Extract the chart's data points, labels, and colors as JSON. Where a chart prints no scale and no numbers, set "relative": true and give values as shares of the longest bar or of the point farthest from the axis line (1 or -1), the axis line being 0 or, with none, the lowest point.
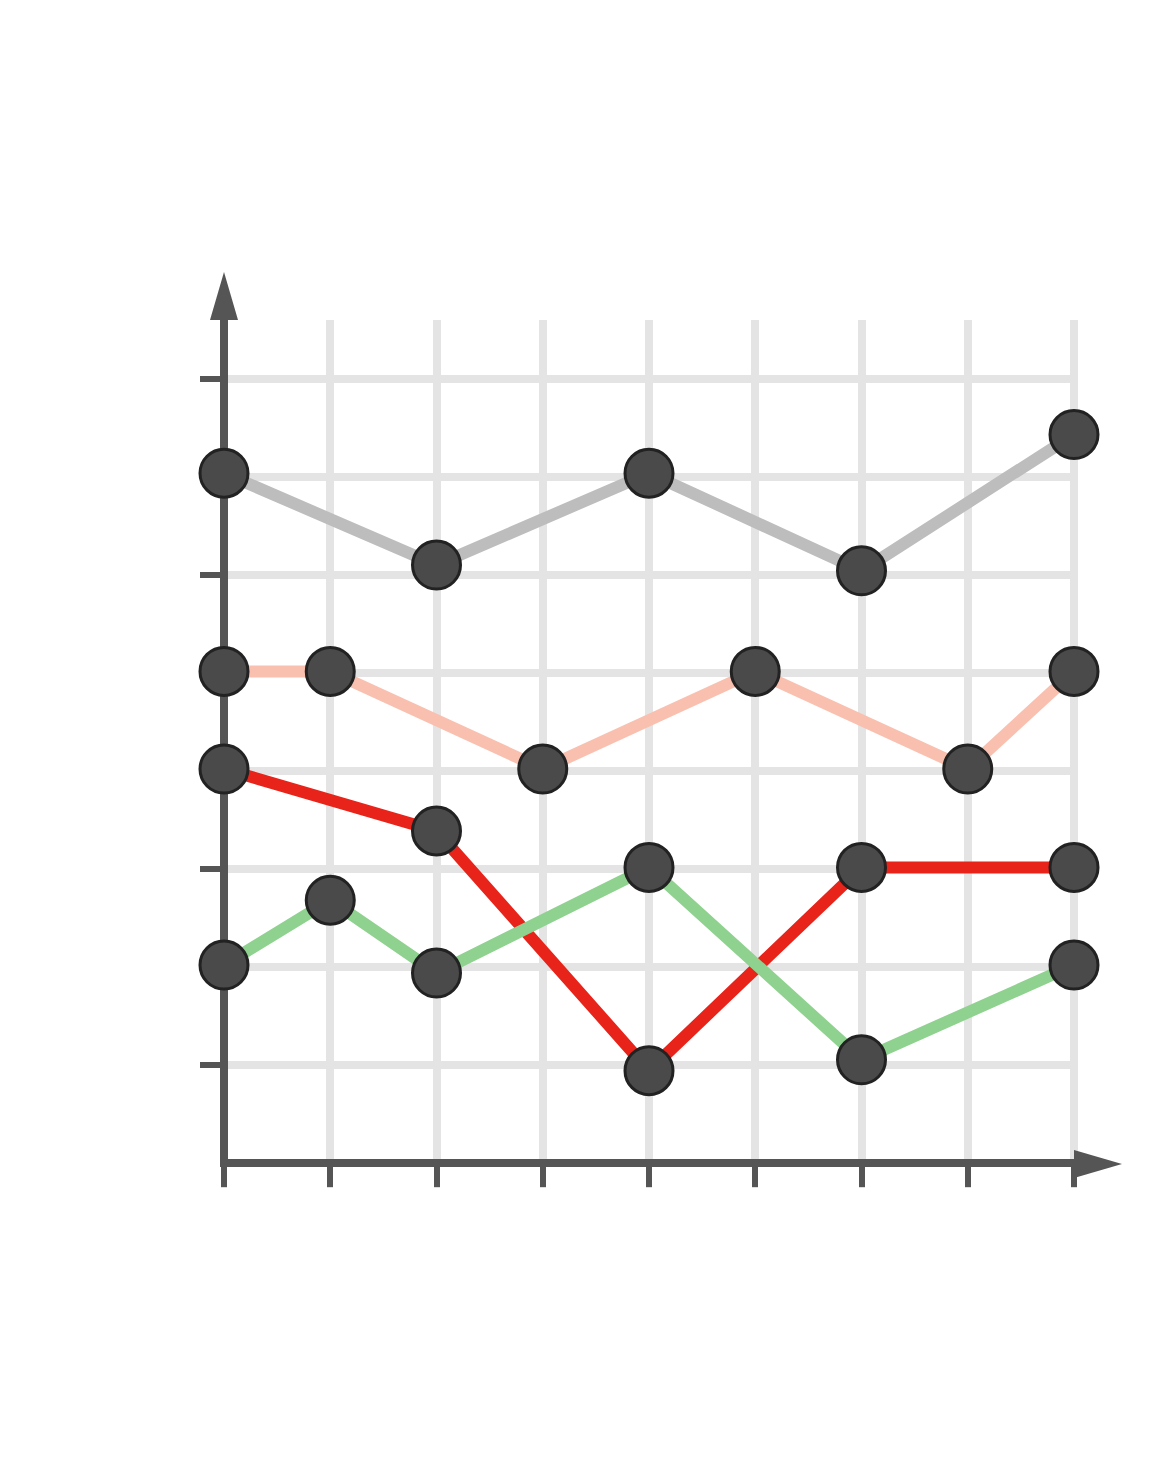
{
  "chart_data": {
    "type": "line",
    "relative": true,
    "grid": true,
    "marker": "circle",
    "line_style": "solid",
    "legend": false,
    "categories": [
      null,
      null,
      null,
      null,
      null,
      null,
      null,
      null,
      null
    ],
    "series": [
      {
        "color": "#bdbdbd",
        "values": [
          0.947,
          null,
          0.821,
          null,
          0.947,
          null,
          0.813,
          null,
          1
        ]
      },
      {
        "color": "#f9c0b0",
        "values": [
          0.675,
          0.675,
          null,
          0.541,
          null,
          0.675,
          null,
          0.541,
          0.675
        ]
      },
      {
        "color": "#e8231a",
        "values": [
          0.541,
          null,
          0.456,
          null,
          0.127,
          null,
          0.406,
          null,
          0.406
        ]
      },
      {
        "color": "#8fd18f",
        "values": [
          0.272,
          0.361,
          0.261,
          null,
          0.406,
          null,
          0.142,
          null,
          0.272
        ]
      }
    ]
  }
}
